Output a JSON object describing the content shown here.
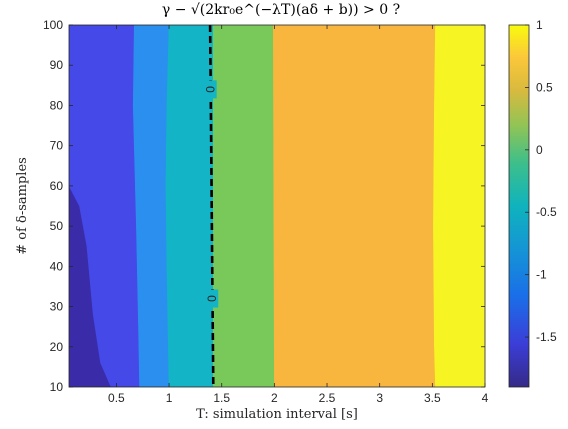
{
  "chart_data": {
    "type": "heatmap",
    "subtype": "filled-contour",
    "title": "γ − √(2kr₀e^(−λT)(aδ + b)) > 0 ?",
    "xlabel": "T: simulation interval [s]",
    "ylabel": "# of δ-samples",
    "xlim": [
      0.05,
      4.0
    ],
    "ylim": [
      10,
      100
    ],
    "x_ticks": [
      0.5,
      1,
      1.5,
      2,
      2.5,
      3,
      3.5,
      4
    ],
    "x_tick_labels": [
      "0.5",
      "1",
      "1.5",
      "2",
      "2.5",
      "3",
      "3.5",
      "4"
    ],
    "y_ticks": [
      10,
      20,
      30,
      40,
      50,
      60,
      70,
      80,
      90,
      100
    ],
    "y_tick_labels": [
      "10",
      "20",
      "30",
      "40",
      "50",
      "60",
      "70",
      "80",
      "90",
      "100"
    ],
    "colorbar": {
      "colormap": "parula",
      "range": [
        -1.9,
        1.0
      ],
      "ticks": [
        -1.5,
        -1,
        -0.5,
        0,
        0.5,
        1
      ],
      "tick_labels": [
        "-1.5",
        "-1",
        "-0.5",
        "0",
        "0.5",
        "1"
      ]
    },
    "bands": [
      {
        "value": -1.85,
        "color": "#3a2ca8",
        "polygon": [
          [
            0.05,
            10
          ],
          [
            0.05,
            60
          ],
          [
            0.15,
            55
          ],
          [
            0.22,
            45
          ],
          [
            0.28,
            28
          ],
          [
            0.35,
            16
          ],
          [
            0.45,
            10
          ]
        ]
      },
      {
        "value": -1.6,
        "color": "#4549e8",
        "polygon": [
          [
            0.05,
            60
          ],
          [
            0.05,
            100
          ],
          [
            0.67,
            100
          ],
          [
            0.66,
            80
          ],
          [
            0.69,
            50
          ],
          [
            0.71,
            25
          ],
          [
            0.72,
            10
          ],
          [
            0.45,
            10
          ],
          [
            0.35,
            16
          ],
          [
            0.28,
            28
          ],
          [
            0.22,
            45
          ],
          [
            0.15,
            55
          ]
        ]
      },
      {
        "value": -1.1,
        "color": "#2b8ff0",
        "polygon": [
          [
            0.67,
            100
          ],
          [
            1.0,
            100
          ],
          [
            0.98,
            80
          ],
          [
            0.97,
            60
          ],
          [
            0.98,
            40
          ],
          [
            0.99,
            25
          ],
          [
            1.0,
            10
          ],
          [
            0.72,
            10
          ],
          [
            0.71,
            25
          ],
          [
            0.69,
            50
          ],
          [
            0.66,
            80
          ]
        ]
      },
      {
        "value": -0.55,
        "color": "#13b4c6",
        "polygon": [
          [
            1.0,
            100
          ],
          [
            1.42,
            100
          ],
          [
            1.42,
            10
          ],
          [
            1.0,
            10
          ],
          [
            0.99,
            25
          ],
          [
            0.98,
            40
          ],
          [
            0.97,
            60
          ],
          [
            0.98,
            80
          ]
        ]
      },
      {
        "value": 0.0,
        "color": "#79c95a",
        "polygon": [
          [
            1.42,
            100
          ],
          [
            1.99,
            100
          ],
          [
            2.0,
            10
          ],
          [
            1.42,
            10
          ]
        ]
      },
      {
        "value": 0.55,
        "color": "#f9b63e",
        "polygon": [
          [
            1.99,
            100
          ],
          [
            3.53,
            100
          ],
          [
            3.52,
            80
          ],
          [
            3.51,
            50
          ],
          [
            3.52,
            20
          ],
          [
            3.53,
            10
          ],
          [
            2.0,
            10
          ]
        ]
      },
      {
        "value": 0.95,
        "color": "#f6f523",
        "polygon": [
          [
            3.53,
            100
          ],
          [
            4.0,
            100
          ],
          [
            4.0,
            10
          ],
          [
            3.53,
            10
          ],
          [
            3.52,
            20
          ],
          [
            3.51,
            50
          ],
          [
            3.52,
            80
          ]
        ]
      }
    ],
    "zero_contour": {
      "level": 0,
      "label": "0",
      "points": [
        [
          1.39,
          100
        ],
        [
          1.4,
          70
        ],
        [
          1.41,
          40
        ],
        [
          1.42,
          10
        ]
      ],
      "label_positions": [
        [
          1.395,
          84
        ],
        [
          1.41,
          32
        ]
      ]
    }
  }
}
